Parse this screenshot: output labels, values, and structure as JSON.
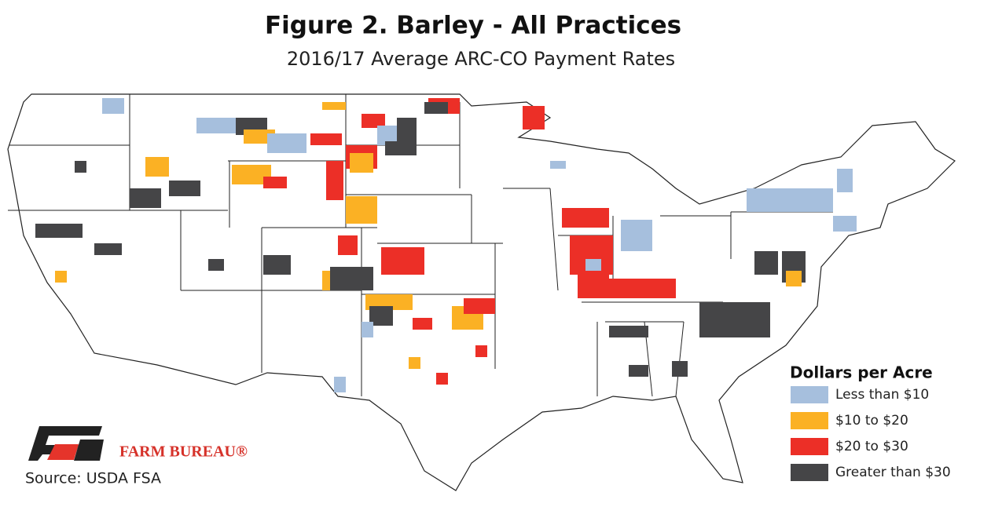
{
  "title": "Figure 2. Barley - All Practices",
  "subtitle": "2016/17 Average ARC-CO Payment Rates",
  "legend": {
    "title": "Dollars per Acre",
    "items": [
      {
        "label": "Less than $10",
        "color": "#a6bfdd"
      },
      {
        "label": "$10 to $20",
        "color": "#fbb124"
      },
      {
        "label": "$20 to $30",
        "color": "#ec2f27"
      },
      {
        "label": "Greater than $30",
        "color": "#454547"
      }
    ]
  },
  "logo": {
    "text": "FARM BUREAU®"
  },
  "source": "Source: USDA FSA"
}
